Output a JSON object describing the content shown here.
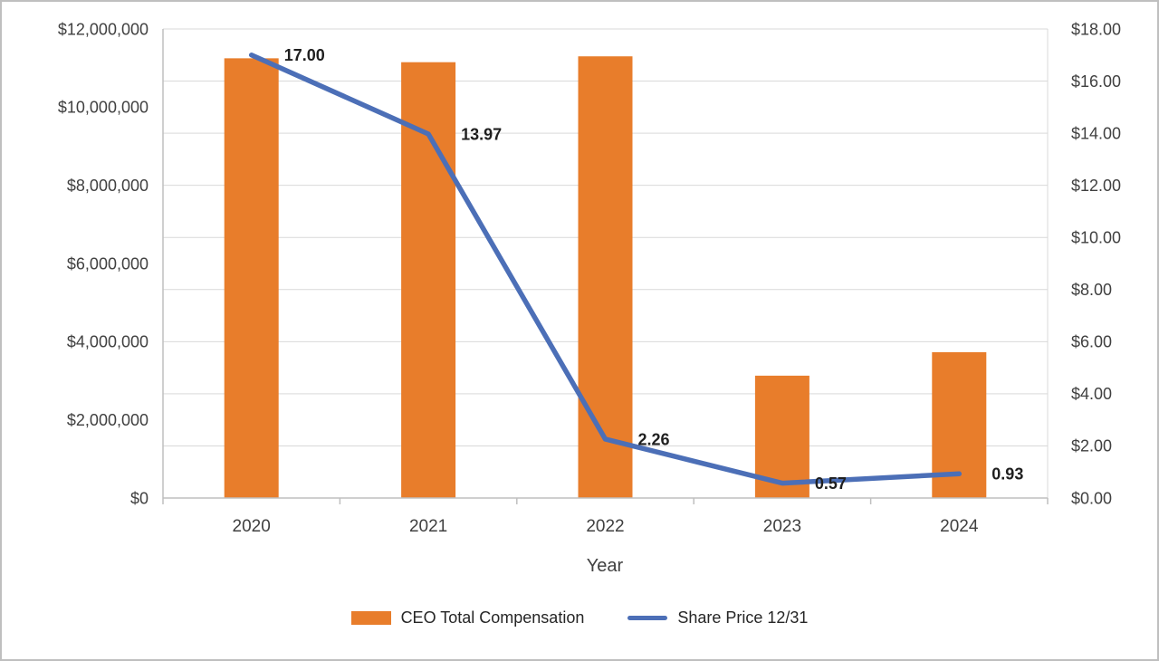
{
  "chart_data": {
    "type": "combo",
    "categories": [
      "2020",
      "2021",
      "2022",
      "2023",
      "2024"
    ],
    "series": [
      {
        "name": "CEO Total Compensation",
        "type": "bar",
        "axis": "left",
        "color": "#E87D2B",
        "values": [
          11250000,
          11150000,
          11300000,
          3130000,
          3730000
        ]
      },
      {
        "name": "Share Price 12/31",
        "type": "line",
        "axis": "right",
        "color": "#4C6FB7",
        "values": [
          17,
          13.97,
          2.26,
          0.57,
          0.93
        ],
        "labels": [
          "17.00",
          "13.97",
          "2.26",
          "0.57",
          "0.93"
        ]
      }
    ],
    "xlabel": "Year",
    "left_axis": {
      "min": 0,
      "max": 12000000,
      "step": 2000000,
      "tick_labels": [
        "$0",
        "$2,000,000",
        "$4,000,000",
        "$6,000,000",
        "$8,000,000",
        "$10,000,000",
        "$12,000,000"
      ]
    },
    "right_axis": {
      "min": 0,
      "max": 18,
      "step": 2,
      "tick_labels": [
        "$0.00",
        "$2.00",
        "$4.00",
        "$6.00",
        "$8.00",
        "$10.00",
        "$12.00",
        "$14.00",
        "$16.00",
        "$18.00"
      ]
    },
    "gridlines": "horizontal-major",
    "legend_position": "bottom"
  }
}
